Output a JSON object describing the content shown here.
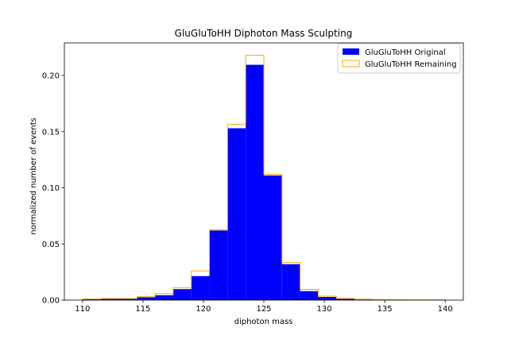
{
  "chart_data": {
    "type": "histogram",
    "title": "GluGluToHH Diphoton Mass Sculpting",
    "xlabel": "diphoton mass",
    "ylabel": "normalized number of events",
    "xlim": [
      108.5,
      141.5
    ],
    "ylim": [
      0,
      0.229
    ],
    "xticks": [
      110,
      115,
      120,
      125,
      130,
      135,
      140
    ],
    "yticks": [
      0.0,
      0.05,
      0.1,
      0.15,
      0.2
    ],
    "ytick_labels": [
      "0.00",
      "0.05",
      "0.10",
      "0.15",
      "0.20"
    ],
    "bin_edges": [
      110.0,
      111.5,
      113.0,
      114.5,
      116.0,
      117.5,
      119.0,
      120.5,
      122.0,
      123.5,
      125.0,
      126.5,
      128.0,
      129.5,
      131.0,
      132.5,
      134.0,
      135.5,
      137.0,
      138.5,
      140.0
    ],
    "series": [
      {
        "name": "GluGluToHH Original",
        "style": "filled",
        "color": "#0000ff",
        "values": [
          0.0012,
          0.0016,
          0.0016,
          0.0026,
          0.0044,
          0.0098,
          0.0214,
          0.062,
          0.153,
          0.2095,
          0.111,
          0.032,
          0.008,
          0.0028,
          0.0012,
          0.0007,
          0.0005,
          0.0004,
          0.0003,
          0.0003
        ]
      },
      {
        "name": "GluGluToHH Remaining",
        "style": "step",
        "color": "#ffa500",
        "values": [
          0.001,
          0.0014,
          0.0014,
          0.003,
          0.0058,
          0.011,
          0.026,
          0.0625,
          0.1565,
          0.218,
          0.112,
          0.0335,
          0.0095,
          0.0035,
          0.0015,
          0.0008,
          0.0005,
          0.0004,
          0.0003,
          0.0003
        ]
      }
    ],
    "legend_position": "top-right",
    "grid": false
  }
}
